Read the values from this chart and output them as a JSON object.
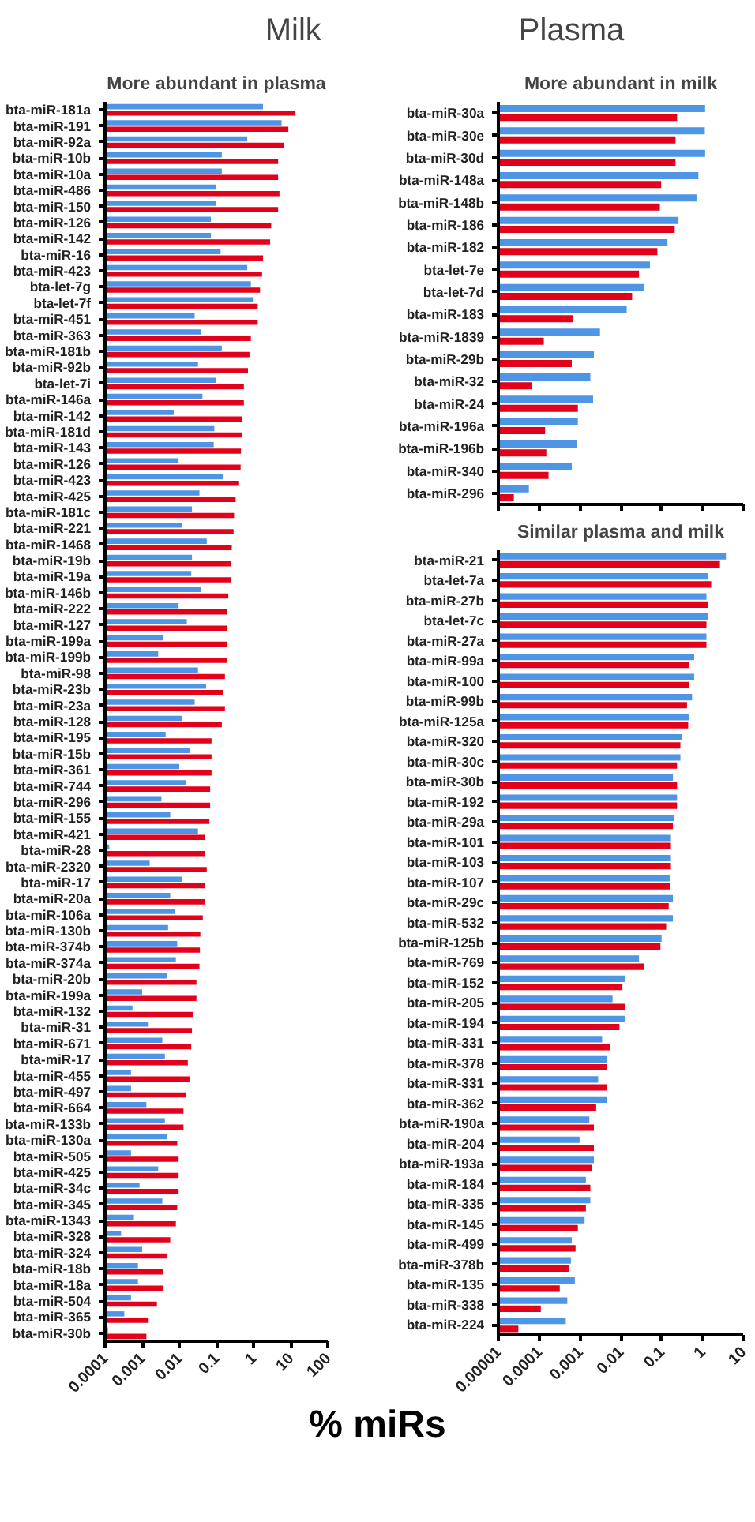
{
  "chart_data": [
    {
      "type": "bar",
      "orientation": "horizontal",
      "title": "More abundant in plasma",
      "xlabel": "% miRs",
      "legend": "top",
      "log": "x",
      "grid": false,
      "categories": [
        "bta-miR-181a",
        "bta-miR-191",
        "bta-miR-92a",
        "bta-miR-10b",
        "bta-miR-10a",
        "bta-miR-486",
        "bta-miR-150",
        "bta-miR-126",
        "bta-miR-142",
        "bta-miR-16",
        "bta-miR-423",
        "bta-let-7g",
        "bta-let-7f",
        "bta-miR-451",
        "bta-miR-363",
        "bta-miR-181b",
        "bta-miR-92b",
        "bta-let-7i",
        "bta-miR-146a",
        "bta-miR-142",
        "bta-miR-181d",
        "bta-miR-143",
        "bta-miR-126",
        "bta-miR-423",
        "bta-miR-425",
        "bta-miR-181c",
        "bta-miR-221",
        "bta-miR-1468",
        "bta-miR-19b",
        "bta-miR-19a",
        "bta-miR-146b",
        "bta-miR-222",
        "bta-miR-127",
        "bta-miR-199a",
        "bta-miR-199b",
        "bta-miR-98",
        "bta-miR-23b",
        "bta-miR-23a",
        "bta-miR-128",
        "bta-miR-195",
        "bta-miR-15b",
        "bta-miR-361",
        "bta-miR-744",
        "bta-miR-296",
        "bta-miR-155",
        "bta-miR-421",
        "bta-miR-28",
        "bta-miR-2320",
        "bta-miR-17",
        "bta-miR-20a",
        "bta-miR-106a",
        "bta-miR-130b",
        "bta-miR-374b",
        "bta-miR-374a",
        "bta-miR-20b",
        "bta-miR-199a",
        "bta-miR-132",
        "bta-miR-31",
        "bta-miR-671",
        "bta-miR-17",
        "bta-miR-455",
        "bta-miR-497",
        "bta-miR-664",
        "bta-miR-133b",
        "bta-miR-130a",
        "bta-miR-505",
        "bta-miR-425",
        "bta-miR-34c",
        "bta-miR-345",
        "bta-miR-1343",
        "bta-miR-328",
        "bta-miR-324",
        "bta-miR-18b",
        "bta-miR-18a",
        "bta-miR-504",
        "bta-miR-365",
        "bta-miR-30b"
      ],
      "series": [
        {
          "name": "Milk",
          "color": "#4f95e6",
          "values": [
            1.8,
            5.7,
            0.68,
            0.14,
            0.14,
            0.1,
            0.1,
            0.071,
            0.071,
            0.13,
            0.68,
            0.85,
            0.96,
            0.026,
            0.039,
            0.14,
            0.032,
            0.1,
            0.042,
            0.0071,
            0.088,
            0.085,
            0.0096,
            0.15,
            0.035,
            0.022,
            0.012,
            0.055,
            0.022,
            0.021,
            0.039,
            0.0096,
            0.016,
            0.0037,
            0.0027,
            0.032,
            0.053,
            0.026,
            0.012,
            0.0043,
            0.019,
            0.01,
            0.015,
            0.0033,
            0.0057,
            0.032,
            0.00013,
            0.0016,
            0.012,
            0.0057,
            0.0078,
            0.005,
            0.0088,
            0.0081,
            0.0047,
            0.001,
            0.00055,
            0.0015,
            0.0035,
            0.0041,
            0.0005,
            0.0005,
            0.0013,
            0.0041,
            0.0047,
            0.0005,
            0.0027,
            0.00085,
            0.0035,
            0.0006,
            0.00027,
            0.001,
            0.00077,
            0.00077,
            0.0005,
            0.00033,
            0.00012
          ]
        },
        {
          "name": "Plasma",
          "color": "#e3001b",
          "values": [
            13.5,
            8.7,
            6.5,
            4.6,
            4.6,
            5.0,
            4.6,
            3.0,
            2.8,
            1.8,
            1.7,
            1.5,
            1.3,
            1.3,
            0.85,
            0.78,
            0.71,
            0.55,
            0.55,
            0.5,
            0.5,
            0.46,
            0.45,
            0.39,
            0.33,
            0.3,
            0.29,
            0.26,
            0.25,
            0.25,
            0.21,
            0.19,
            0.19,
            0.19,
            0.19,
            0.17,
            0.15,
            0.17,
            0.14,
            0.074,
            0.074,
            0.074,
            0.068,
            0.068,
            0.065,
            0.049,
            0.049,
            0.055,
            0.049,
            0.049,
            0.043,
            0.037,
            0.036,
            0.035,
            0.029,
            0.029,
            0.023,
            0.022,
            0.021,
            0.017,
            0.019,
            0.015,
            0.013,
            0.013,
            0.0088,
            0.0096,
            0.0096,
            0.0096,
            0.0088,
            0.0081,
            0.0057,
            0.0047,
            0.0037,
            0.0037,
            0.0025,
            0.0015,
            0.0013
          ]
        }
      ],
      "xlim": [
        0.0001,
        100
      ],
      "xticks": [
        0.0001,
        0.001,
        0.01,
        0.1,
        1,
        10,
        100
      ]
    },
    {
      "type": "bar",
      "orientation": "horizontal",
      "title": "More abundant in milk",
      "log": "x",
      "grid": false,
      "tick_labels": "y",
      "categories": [
        "bta-miR-30a",
        "bta-miR-30e",
        "bta-miR-30d",
        "bta-miR-148a",
        "bta-miR-148b",
        "bta-miR-186",
        "bta-miR-182",
        "bta-let-7e",
        "bta-let-7d",
        "bta-miR-183",
        "bta-miR-1839",
        "bta-miR-29b",
        "bta-miR-32",
        "bta-miR-24",
        "bta-miR-196a",
        "bta-miR-196b",
        "bta-miR-340",
        "bta-miR-296"
      ],
      "series": [
        {
          "color": "#4f95e6",
          "values": [
            1.17,
            1.15,
            1.17,
            0.8,
            0.72,
            0.26,
            0.14,
            0.052,
            0.037,
            0.014,
            0.0031,
            0.0022,
            0.0018,
            0.0021,
            0.00089,
            0.00083,
            0.00063,
            5.6e-05
          ]
        },
        {
          "color": "#e3001b",
          "values": [
            0.24,
            0.22,
            0.22,
            0.098,
            0.091,
            0.21,
            0.079,
            0.028,
            0.019,
            0.00069,
            0.00013,
            0.00063,
            6.6e-05,
            0.00089,
            0.00014,
            0.00015,
            0.00017,
            2.4e-05
          ]
        }
      ],
      "xlim": [
        1e-05,
        10
      ],
      "xticks": [
        1e-05,
        0.0001,
        0.001,
        0.01,
        0.1,
        1,
        10
      ]
    },
    {
      "type": "bar",
      "orientation": "horizontal",
      "title": "Similar plasma and milk",
      "log": "x",
      "grid": false,
      "categories": [
        "bta-miR-21",
        "bta-let-7a",
        "bta-miR-27b",
        "bta-let-7c",
        "bta-miR-27a",
        "bta-miR-99a",
        "bta-miR-100",
        "bta-miR-99b",
        "bta-miR-125a",
        "bta-miR-320",
        "bta-miR-30c",
        "bta-miR-30b",
        "bta-miR-192",
        "bta-miR-29a",
        "bta-miR-101",
        "bta-miR-103",
        "bta-miR-107",
        "bta-miR-29c",
        "bta-miR-532",
        "bta-miR-125b",
        "bta-miR-769",
        "bta-miR-152",
        "bta-miR-205",
        "bta-miR-194",
        "bta-miR-331",
        "bta-miR-378",
        "bta-miR-331",
        "bta-miR-362",
        "bta-miR-190a",
        "bta-miR-204",
        "bta-miR-193a",
        "bta-miR-184",
        "bta-miR-335",
        "bta-miR-145",
        "bta-miR-499",
        "bta-miR-378b",
        "bta-miR-135",
        "bta-miR-338",
        "bta-miR-224"
      ],
      "series": [
        {
          "color": "#4f95e6",
          "values": [
            3.8,
            1.35,
            1.26,
            1.35,
            1.26,
            0.63,
            0.63,
            0.56,
            0.48,
            0.32,
            0.29,
            0.19,
            0.24,
            0.2,
            0.17,
            0.17,
            0.16,
            0.19,
            0.19,
            0.1,
            0.028,
            0.0126,
            0.0063,
            0.013,
            0.0035,
            0.0047,
            0.0028,
            0.0045,
            0.0017,
            0.00098,
            0.0022,
            0.0014,
            0.0018,
            0.0013,
            0.00063,
            0.0006,
            0.00075,
            0.00049,
            0.00045
          ]
        },
        {
          "color": "#e3001b",
          "values": [
            2.7,
            1.65,
            1.35,
            1.26,
            1.26,
            0.48,
            0.48,
            0.42,
            0.45,
            0.29,
            0.24,
            0.24,
            0.24,
            0.19,
            0.17,
            0.17,
            0.16,
            0.15,
            0.13,
            0.094,
            0.037,
            0.011,
            0.013,
            0.0093,
            0.0054,
            0.0045,
            0.0045,
            0.0025,
            0.0022,
            0.0022,
            0.002,
            0.0018,
            0.0014,
            0.00089,
            0.00078,
            0.00055,
            0.00032,
            0.00011,
            3.1e-05
          ]
        }
      ],
      "xlim": [
        1e-05,
        10
      ],
      "xticks": [
        {
          "value": 1e-05,
          "label": "0.00001"
        },
        0.0001,
        0.001,
        0.01,
        0.1,
        1,
        10
      ]
    }
  ]
}
